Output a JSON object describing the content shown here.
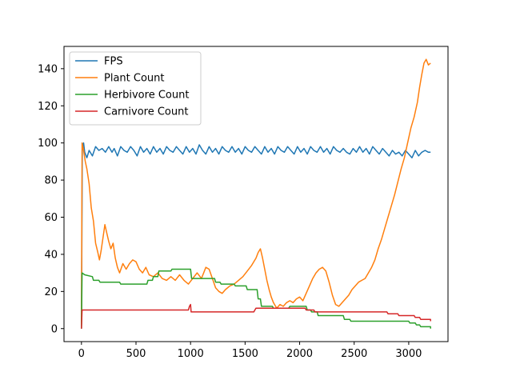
{
  "chart_data": {
    "type": "line",
    "title": "",
    "xlabel": "",
    "ylabel": "",
    "xlim": [
      -160,
      3360
    ],
    "ylim": [
      -7,
      152
    ],
    "xticks": [
      0,
      500,
      1000,
      1500,
      2000,
      2500,
      3000
    ],
    "yticks": [
      0,
      20,
      40,
      60,
      80,
      100,
      120,
      140
    ],
    "legend_position": "top-left",
    "grid": false,
    "series": [
      {
        "name": "FPS",
        "color": "#1f77b4",
        "points": [
          [
            0,
            0
          ],
          [
            8,
            97
          ],
          [
            20,
            100
          ],
          [
            30,
            95
          ],
          [
            50,
            92
          ],
          [
            70,
            96
          ],
          [
            100,
            93
          ],
          [
            130,
            98
          ],
          [
            160,
            96
          ],
          [
            190,
            97
          ],
          [
            220,
            95
          ],
          [
            250,
            98
          ],
          [
            280,
            95
          ],
          [
            300,
            97
          ],
          [
            330,
            93
          ],
          [
            360,
            98
          ],
          [
            390,
            96
          ],
          [
            420,
            95
          ],
          [
            450,
            98
          ],
          [
            480,
            96
          ],
          [
            510,
            93
          ],
          [
            540,
            98
          ],
          [
            570,
            95
          ],
          [
            600,
            97
          ],
          [
            630,
            94
          ],
          [
            660,
            98
          ],
          [
            690,
            95
          ],
          [
            720,
            97
          ],
          [
            750,
            94
          ],
          [
            780,
            98
          ],
          [
            810,
            96
          ],
          [
            840,
            95
          ],
          [
            870,
            98
          ],
          [
            900,
            96
          ],
          [
            930,
            94
          ],
          [
            960,
            98
          ],
          [
            990,
            95
          ],
          [
            1020,
            97
          ],
          [
            1050,
            94
          ],
          [
            1080,
            99
          ],
          [
            1110,
            96
          ],
          [
            1140,
            94
          ],
          [
            1170,
            98
          ],
          [
            1200,
            95
          ],
          [
            1230,
            97
          ],
          [
            1260,
            94
          ],
          [
            1290,
            98
          ],
          [
            1320,
            96
          ],
          [
            1350,
            95
          ],
          [
            1380,
            98
          ],
          [
            1410,
            95
          ],
          [
            1440,
            97
          ],
          [
            1470,
            94
          ],
          [
            1500,
            98
          ],
          [
            1530,
            96
          ],
          [
            1560,
            95
          ],
          [
            1590,
            98
          ],
          [
            1620,
            96
          ],
          [
            1650,
            94
          ],
          [
            1680,
            98
          ],
          [
            1710,
            95
          ],
          [
            1740,
            97
          ],
          [
            1770,
            94
          ],
          [
            1800,
            98
          ],
          [
            1830,
            96
          ],
          [
            1860,
            95
          ],
          [
            1890,
            98
          ],
          [
            1920,
            96
          ],
          [
            1950,
            94
          ],
          [
            1980,
            98
          ],
          [
            2010,
            95
          ],
          [
            2040,
            97
          ],
          [
            2070,
            94
          ],
          [
            2100,
            98
          ],
          [
            2130,
            96
          ],
          [
            2160,
            95
          ],
          [
            2190,
            98
          ],
          [
            2220,
            95
          ],
          [
            2250,
            97
          ],
          [
            2280,
            94
          ],
          [
            2310,
            98
          ],
          [
            2340,
            96
          ],
          [
            2370,
            95
          ],
          [
            2400,
            97
          ],
          [
            2430,
            95
          ],
          [
            2460,
            94
          ],
          [
            2490,
            97
          ],
          [
            2520,
            95
          ],
          [
            2550,
            98
          ],
          [
            2580,
            95
          ],
          [
            2610,
            97
          ],
          [
            2640,
            94
          ],
          [
            2670,
            98
          ],
          [
            2700,
            96
          ],
          [
            2730,
            94
          ],
          [
            2760,
            97
          ],
          [
            2790,
            95
          ],
          [
            2820,
            93
          ],
          [
            2850,
            96
          ],
          [
            2880,
            94
          ],
          [
            2910,
            95
          ],
          [
            2940,
            93
          ],
          [
            2970,
            96
          ],
          [
            3000,
            94
          ],
          [
            3030,
            92
          ],
          [
            3060,
            96
          ],
          [
            3090,
            93
          ],
          [
            3120,
            95
          ],
          [
            3150,
            96
          ],
          [
            3180,
            95
          ],
          [
            3200,
            95
          ]
        ]
      },
      {
        "name": "Plant Count",
        "color": "#ff7f0e",
        "points": [
          [
            0,
            0
          ],
          [
            6,
            100
          ],
          [
            20,
            96
          ],
          [
            35,
            90
          ],
          [
            50,
            86
          ],
          [
            70,
            78
          ],
          [
            90,
            65
          ],
          [
            110,
            58
          ],
          [
            130,
            46
          ],
          [
            150,
            41
          ],
          [
            165,
            37
          ],
          [
            180,
            42
          ],
          [
            200,
            50
          ],
          [
            215,
            56
          ],
          [
            230,
            52
          ],
          [
            250,
            47
          ],
          [
            270,
            43
          ],
          [
            290,
            46
          ],
          [
            310,
            38
          ],
          [
            330,
            33
          ],
          [
            350,
            30
          ],
          [
            380,
            35
          ],
          [
            410,
            32
          ],
          [
            440,
            35
          ],
          [
            470,
            37
          ],
          [
            500,
            36
          ],
          [
            530,
            32
          ],
          [
            560,
            30
          ],
          [
            590,
            33
          ],
          [
            620,
            29
          ],
          [
            660,
            28
          ],
          [
            700,
            30
          ],
          [
            740,
            27
          ],
          [
            780,
            26
          ],
          [
            820,
            28
          ],
          [
            860,
            26
          ],
          [
            900,
            29
          ],
          [
            940,
            26
          ],
          [
            980,
            24
          ],
          [
            1020,
            27
          ],
          [
            1060,
            30
          ],
          [
            1100,
            27
          ],
          [
            1140,
            33
          ],
          [
            1170,
            32
          ],
          [
            1200,
            27
          ],
          [
            1230,
            22
          ],
          [
            1260,
            20
          ],
          [
            1290,
            19
          ],
          [
            1320,
            21
          ],
          [
            1360,
            23
          ],
          [
            1400,
            24
          ],
          [
            1440,
            26
          ],
          [
            1480,
            28
          ],
          [
            1520,
            31
          ],
          [
            1560,
            34
          ],
          [
            1600,
            38
          ],
          [
            1620,
            41
          ],
          [
            1640,
            43
          ],
          [
            1660,
            38
          ],
          [
            1680,
            32
          ],
          [
            1700,
            26
          ],
          [
            1720,
            21
          ],
          [
            1740,
            17
          ],
          [
            1760,
            14
          ],
          [
            1790,
            11
          ],
          [
            1820,
            13
          ],
          [
            1850,
            12
          ],
          [
            1880,
            14
          ],
          [
            1910,
            15
          ],
          [
            1940,
            14
          ],
          [
            1970,
            16
          ],
          [
            2000,
            17
          ],
          [
            2030,
            15
          ],
          [
            2060,
            19
          ],
          [
            2090,
            23
          ],
          [
            2120,
            27
          ],
          [
            2150,
            30
          ],
          [
            2180,
            32
          ],
          [
            2210,
            33
          ],
          [
            2240,
            31
          ],
          [
            2270,
            25
          ],
          [
            2300,
            18
          ],
          [
            2330,
            13
          ],
          [
            2360,
            12
          ],
          [
            2390,
            14
          ],
          [
            2420,
            16
          ],
          [
            2450,
            18
          ],
          [
            2480,
            21
          ],
          [
            2510,
            23
          ],
          [
            2540,
            25
          ],
          [
            2570,
            26
          ],
          [
            2600,
            27
          ],
          [
            2630,
            30
          ],
          [
            2660,
            33
          ],
          [
            2690,
            37
          ],
          [
            2720,
            43
          ],
          [
            2750,
            48
          ],
          [
            2780,
            54
          ],
          [
            2810,
            60
          ],
          [
            2840,
            66
          ],
          [
            2870,
            72
          ],
          [
            2900,
            79
          ],
          [
            2930,
            86
          ],
          [
            2960,
            92
          ],
          [
            2990,
            100
          ],
          [
            3020,
            108
          ],
          [
            3050,
            114
          ],
          [
            3080,
            122
          ],
          [
            3100,
            130
          ],
          [
            3120,
            137
          ],
          [
            3140,
            143
          ],
          [
            3160,
            145
          ],
          [
            3180,
            142
          ],
          [
            3200,
            143
          ]
        ]
      },
      {
        "name": "Herbivore Count",
        "color": "#2ca02c",
        "points": [
          [
            0,
            0
          ],
          [
            6,
            30
          ],
          [
            30,
            29
          ],
          [
            100,
            28
          ],
          [
            110,
            26
          ],
          [
            160,
            26
          ],
          [
            170,
            25
          ],
          [
            350,
            25
          ],
          [
            360,
            24
          ],
          [
            600,
            24
          ],
          [
            610,
            26
          ],
          [
            650,
            26
          ],
          [
            660,
            28
          ],
          [
            700,
            28
          ],
          [
            710,
            31
          ],
          [
            820,
            31
          ],
          [
            830,
            32
          ],
          [
            1000,
            32
          ],
          [
            1010,
            27
          ],
          [
            1220,
            27
          ],
          [
            1230,
            25
          ],
          [
            1270,
            25
          ],
          [
            1280,
            24
          ],
          [
            1400,
            24
          ],
          [
            1410,
            23
          ],
          [
            1510,
            23
          ],
          [
            1520,
            21
          ],
          [
            1610,
            21
          ],
          [
            1620,
            16
          ],
          [
            1640,
            16
          ],
          [
            1650,
            12
          ],
          [
            1750,
            12
          ],
          [
            1760,
            11
          ],
          [
            1900,
            11
          ],
          [
            1910,
            12
          ],
          [
            2060,
            12
          ],
          [
            2070,
            10
          ],
          [
            2100,
            10
          ],
          [
            2110,
            9
          ],
          [
            2160,
            9
          ],
          [
            2170,
            7
          ],
          [
            2400,
            7
          ],
          [
            2410,
            5
          ],
          [
            2460,
            5
          ],
          [
            2470,
            4
          ],
          [
            3000,
            4
          ],
          [
            3010,
            3
          ],
          [
            3060,
            3
          ],
          [
            3070,
            2
          ],
          [
            3100,
            2
          ],
          [
            3110,
            1
          ],
          [
            3200,
            1
          ],
          [
            3200,
            0
          ]
        ]
      },
      {
        "name": "Carnivore Count",
        "color": "#d62728",
        "points": [
          [
            0,
            0
          ],
          [
            6,
            10
          ],
          [
            980,
            10
          ],
          [
            990,
            12
          ],
          [
            1000,
            13
          ],
          [
            1005,
            9
          ],
          [
            1580,
            9
          ],
          [
            1590,
            10
          ],
          [
            1600,
            11
          ],
          [
            2050,
            11
          ],
          [
            2060,
            10
          ],
          [
            2130,
            10
          ],
          [
            2140,
            9
          ],
          [
            2800,
            9
          ],
          [
            2810,
            8
          ],
          [
            2900,
            8
          ],
          [
            2910,
            7
          ],
          [
            3050,
            7
          ],
          [
            3060,
            6
          ],
          [
            3100,
            6
          ],
          [
            3110,
            5
          ],
          [
            3200,
            5
          ],
          [
            3200,
            4
          ]
        ]
      }
    ]
  }
}
